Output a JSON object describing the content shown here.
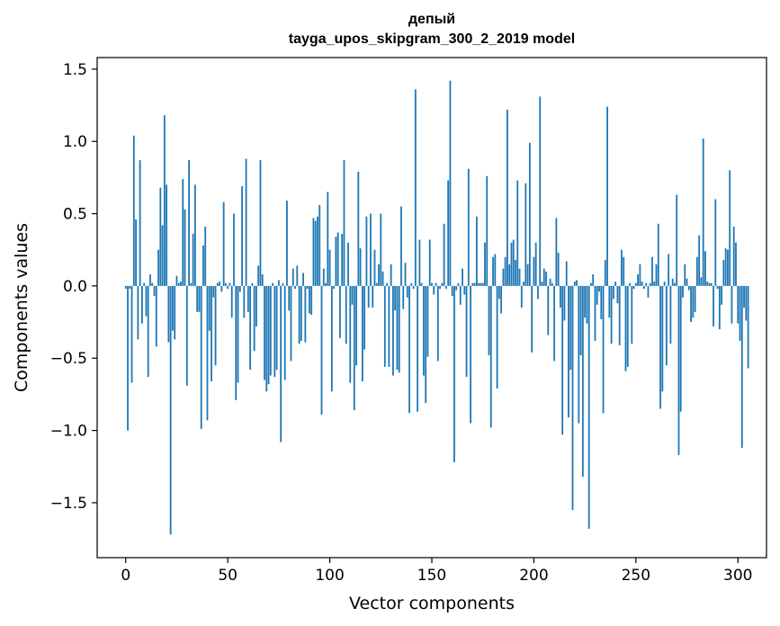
{
  "chart_data": {
    "type": "bar",
    "title": [
      "депый",
      "tayga_upos_skipgram_300_2_2019 model"
    ],
    "xlabel": "Vector components",
    "ylabel": "Components values",
    "xlim": [
      -14,
      314
    ],
    "ylim": [
      -1.88,
      1.58
    ],
    "xticks": [
      0,
      50,
      100,
      150,
      200,
      250,
      300
    ],
    "yticks": [
      -1.5,
      -1.0,
      -0.5,
      0.0,
      0.5,
      1.0,
      1.5
    ],
    "ytick_labels": [
      "−1.5",
      "−1.0",
      "−0.5",
      "0.0",
      "0.5",
      "1.0",
      "1.5"
    ],
    "xtick_labels": [
      "0",
      "50",
      "100",
      "150",
      "200",
      "250",
      "300"
    ],
    "color": "#1f77b4",
    "grid": false,
    "x_start": 0,
    "values": [
      -0.02,
      -1.0,
      -0.02,
      -0.67,
      1.04,
      0.46,
      -0.37,
      0.87,
      -0.26,
      0.02,
      -0.21,
      -0.63,
      0.08,
      0.02,
      -0.07,
      -0.42,
      0.25,
      0.68,
      0.42,
      1.18,
      0.7,
      -0.39,
      -1.72,
      -0.31,
      -0.37,
      0.07,
      0.02,
      0.03,
      0.74,
      0.53,
      -0.69,
      0.87,
      0.02,
      0.36,
      0.7,
      -0.18,
      -0.18,
      -0.99,
      0.28,
      0.41,
      -0.93,
      -0.31,
      -0.66,
      -0.08,
      -0.55,
      0.02,
      0.03,
      -0.04,
      0.58,
      0.02,
      -0.02,
      0.02,
      -0.22,
      0.5,
      -0.79,
      -0.67,
      -0.04,
      0.69,
      -0.22,
      0.88,
      -0.18,
      -0.58,
      0.02,
      -0.45,
      -0.28,
      0.14,
      0.87,
      0.08,
      -0.65,
      -0.73,
      -0.68,
      -0.62,
      0.02,
      -0.63,
      -0.58,
      0.04,
      -1.08,
      0.02,
      -0.65,
      0.59,
      -0.17,
      -0.52,
      0.12,
      -0.02,
      0.14,
      -0.4,
      -0.38,
      0.09,
      -0.39,
      -0.02,
      -0.19,
      -0.2,
      0.47,
      0.45,
      0.48,
      0.56,
      -0.89,
      0.12,
      0.02,
      0.65,
      0.25,
      -0.73,
      -0.02,
      0.34,
      0.37,
      -0.36,
      0.36,
      0.87,
      -0.4,
      0.3,
      -0.67,
      -0.13,
      -0.86,
      -0.55,
      0.79,
      0.26,
      -0.66,
      -0.44,
      0.48,
      -0.15,
      0.5,
      -0.15,
      0.25,
      0.02,
      0.15,
      0.5,
      0.1,
      -0.56,
      0.02,
      -0.56,
      0.15,
      -0.62,
      -0.17,
      -0.58,
      -0.6,
      0.55,
      -0.16,
      0.16,
      -0.08,
      -0.88,
      0.02,
      -0.02,
      1.36,
      -0.87,
      0.32,
      0.02,
      -0.62,
      -0.81,
      -0.49,
      0.32,
      0.02,
      -0.06,
      0.02,
      -0.52,
      -0.02,
      0.02,
      0.43,
      -0.02,
      0.73,
      1.42,
      -0.07,
      -1.22,
      -0.03,
      0.02,
      -0.13,
      0.12,
      -0.06,
      -0.63,
      0.81,
      -0.95,
      0.02,
      0.02,
      0.48,
      0.02,
      0.02,
      0.02,
      0.3,
      0.76,
      -0.48,
      -0.98,
      0.2,
      0.22,
      -0.71,
      -0.09,
      -0.19,
      0.12,
      0.2,
      1.22,
      0.15,
      0.3,
      0.32,
      0.18,
      0.73,
      0.12,
      -0.15,
      0.03,
      0.71,
      0.15,
      0.99,
      -0.46,
      0.2,
      0.3,
      -0.09,
      1.31,
      0.03,
      0.12,
      0.1,
      -0.34,
      0.05,
      0.02,
      -0.52,
      0.47,
      0.23,
      -0.15,
      -1.03,
      -0.24,
      0.17,
      -0.91,
      -0.58,
      -1.55,
      0.03,
      0.04,
      -0.95,
      -0.48,
      -1.32,
      -0.22,
      -0.26,
      -1.68,
      0.02,
      0.08,
      -0.38,
      -0.13,
      -0.04,
      -0.23,
      -0.88,
      0.18,
      1.24,
      -0.22,
      -0.4,
      -0.09,
      0.03,
      -0.12,
      -0.41,
      0.25,
      0.2,
      -0.59,
      -0.56,
      0.02,
      -0.4,
      -0.02,
      0.02,
      0.08,
      0.15,
      0.03,
      -0.02,
      0.02,
      -0.08,
      0.02,
      0.2,
      0.03,
      0.15,
      0.43,
      -0.85,
      -0.73,
      0.03,
      -0.55,
      0.22,
      -0.4,
      0.05,
      0.02,
      0.63,
      -1.17,
      -0.87,
      -0.08,
      0.15,
      0.05,
      -0.03,
      -0.25,
      -0.22,
      -0.18,
      0.2,
      0.35,
      0.06,
      1.02,
      0.24,
      0.03,
      0.02,
      0.02,
      -0.28,
      0.6,
      -0.02,
      -0.3,
      -0.13,
      0.18,
      0.26,
      0.25,
      0.8,
      -0.26,
      0.41,
      0.3,
      -0.26,
      -0.38,
      -1.12,
      -0.15,
      -0.24,
      -0.57
    ]
  }
}
